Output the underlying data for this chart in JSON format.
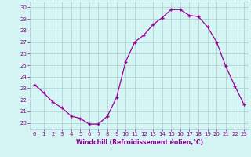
{
  "x": [
    0,
    1,
    2,
    3,
    4,
    5,
    6,
    7,
    8,
    9,
    10,
    11,
    12,
    13,
    14,
    15,
    16,
    17,
    18,
    19,
    20,
    21,
    22,
    23
  ],
  "y": [
    23.3,
    22.6,
    21.8,
    21.3,
    20.6,
    20.4,
    19.9,
    19.9,
    20.6,
    22.2,
    25.3,
    27.0,
    27.6,
    28.5,
    29.1,
    29.8,
    29.8,
    29.3,
    29.2,
    28.3,
    27.0,
    24.9,
    23.2,
    21.6
  ],
  "line_color": "#990099",
  "marker": "+",
  "marker_size": 3,
  "bg_color": "#d5f5f5",
  "grid_color": "#aacccc",
  "xlabel": "Windchill (Refroidissement éolien,°C)",
  "xlabel_color": "#880088",
  "tick_color": "#880088",
  "ylim": [
    19.5,
    30.5
  ],
  "xlim": [
    -0.5,
    23.5
  ],
  "yticks": [
    20,
    21,
    22,
    23,
    24,
    25,
    26,
    27,
    28,
    29,
    30
  ],
  "xticks": [
    0,
    1,
    2,
    3,
    4,
    5,
    6,
    7,
    8,
    9,
    10,
    11,
    12,
    13,
    14,
    15,
    16,
    17,
    18,
    19,
    20,
    21,
    22,
    23
  ],
  "tick_fontsize": 5,
  "xlabel_fontsize": 5.5
}
